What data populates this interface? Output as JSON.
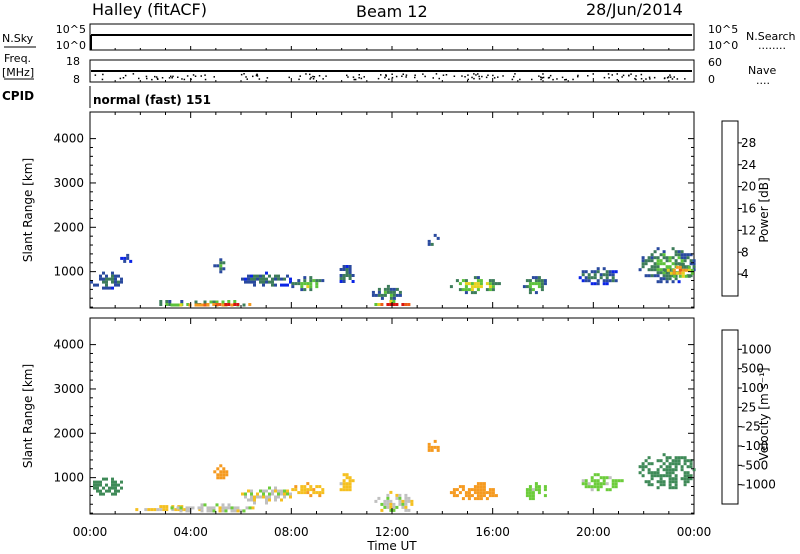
{
  "header": {
    "station": "Halley (fitACF)",
    "beam": "Beam 12",
    "date": "28/Jun/2014"
  },
  "noise_panel": {
    "left_label": "N.Sky",
    "right_label": "N.Search",
    "left_ticks": [
      "10^5",
      "10^0"
    ],
    "right_ticks": [
      "10^5",
      "10^0"
    ],
    "right_dots": "........"
  },
  "freq_panel": {
    "left_label_1": "Freq.",
    "left_label_2": "[MHz]",
    "right_label": "Nave",
    "left_ticks": [
      "18",
      "8"
    ],
    "right_ticks": [
      "60",
      "0"
    ],
    "right_dots": "...."
  },
  "cpid": {
    "label": "CPID",
    "mode": "normal (fast) 151"
  },
  "colors": {
    "power_scale": [
      "#0a24e6",
      "#2a4a9e",
      "#3d7c5a",
      "#5cc23a",
      "#e6d21e",
      "#f59a1e",
      "#ee5a18",
      "#d8140e"
    ],
    "velocity_scale": [
      "#e8140e",
      "#f0641a",
      "#f59a20",
      "#f5c020",
      "#c0c0c0",
      "#6ccc3a",
      "#3f8a58",
      "#2a5a9a",
      "#1e3cc8"
    ]
  },
  "chart_data": [
    {
      "type": "heatmap",
      "name": "power",
      "ylabel": "Slant Range [km]",
      "xlabel": "",
      "xlim": [
        0,
        24
      ],
      "ylim": [
        180,
        4600
      ],
      "x_ticks": [
        "00:00",
        "04:00",
        "08:00",
        "12:00",
        "16:00",
        "20:00",
        "00:00"
      ],
      "y_ticks": [
        1000,
        2000,
        3000,
        4000
      ],
      "colorbar": {
        "label": "Power [dB]",
        "range": [
          0,
          32
        ],
        "ticks": [
          "4",
          "8",
          "12",
          "16",
          "20",
          "24",
          "28"
        ]
      },
      "echo_regions": [
        {
          "t_start": 0.0,
          "t_end": 1.3,
          "r_min": 650,
          "r_max": 1000,
          "level": 8
        },
        {
          "t_start": 1.2,
          "t_end": 1.6,
          "r_min": 1200,
          "r_max": 1400,
          "level": 6
        },
        {
          "t_start": 1.8,
          "t_end": 4.8,
          "r_min": 280,
          "r_max": 360,
          "level": 14
        },
        {
          "t_start": 3.2,
          "t_end": 6.2,
          "r_min": 250,
          "r_max": 350,
          "level": 22
        },
        {
          "t_start": 4.5,
          "t_end": 6.5,
          "r_min": 240,
          "r_max": 360,
          "level": 27
        },
        {
          "t_start": 4.9,
          "t_end": 5.4,
          "r_min": 1000,
          "r_max": 1300,
          "level": 9
        },
        {
          "t_start": 6.0,
          "t_end": 8.0,
          "r_min": 680,
          "r_max": 1000,
          "level": 8
        },
        {
          "t_start": 8.0,
          "t_end": 9.3,
          "r_min": 600,
          "r_max": 900,
          "level": 13
        },
        {
          "t_start": 9.8,
          "t_end": 10.5,
          "r_min": 750,
          "r_max": 1150,
          "level": 8
        },
        {
          "t_start": 11.3,
          "t_end": 12.8,
          "r_min": 230,
          "r_max": 360,
          "level": 27
        },
        {
          "t_start": 11.2,
          "t_end": 12.4,
          "r_min": 400,
          "r_max": 700,
          "level": 10
        },
        {
          "t_start": 13.3,
          "t_end": 13.9,
          "r_min": 1600,
          "r_max": 1850,
          "level": 7
        },
        {
          "t_start": 14.3,
          "t_end": 16.3,
          "r_min": 550,
          "r_max": 900,
          "level": 15
        },
        {
          "t_start": 17.2,
          "t_end": 18.1,
          "r_min": 550,
          "r_max": 900,
          "level": 12
        },
        {
          "t_start": 19.3,
          "t_end": 21.1,
          "r_min": 750,
          "r_max": 1100,
          "level": 8
        },
        {
          "t_start": 21.8,
          "t_end": 24.0,
          "r_min": 800,
          "r_max": 1550,
          "level": 11
        },
        {
          "t_start": 22.8,
          "t_end": 24.0,
          "r_min": 900,
          "r_max": 1200,
          "level": 20
        }
      ]
    },
    {
      "type": "heatmap",
      "name": "velocity",
      "ylabel": "Slant Range [km]",
      "xlabel": "Time UT",
      "xlim": [
        0,
        24
      ],
      "ylim": [
        180,
        4600
      ],
      "x_ticks": [
        "00:00",
        "04:00",
        "08:00",
        "12:00",
        "16:00",
        "20:00",
        "00:00"
      ],
      "y_ticks": [
        1000,
        2000,
        3000,
        4000
      ],
      "colorbar": {
        "label": "Velocity [m s⁻¹]",
        "ticks": [
          "1000",
          "500",
          "100",
          "25",
          "-25",
          "-100",
          "-500",
          "-1000"
        ]
      },
      "echo_regions": [
        {
          "t_start": 0.0,
          "t_end": 1.3,
          "r_min": 650,
          "r_max": 1000,
          "velocity": 300
        },
        {
          "t_start": 1.8,
          "t_end": 4.8,
          "r_min": 260,
          "r_max": 380,
          "velocity": -50
        },
        {
          "t_start": 3.2,
          "t_end": 6.5,
          "r_min": 240,
          "r_max": 420,
          "velocity": 0
        },
        {
          "t_start": 4.9,
          "t_end": 5.4,
          "r_min": 1000,
          "r_max": 1300,
          "velocity": -150
        },
        {
          "t_start": 6.0,
          "t_end": 8.0,
          "r_min": 450,
          "r_max": 800,
          "velocity": 0
        },
        {
          "t_start": 8.0,
          "t_end": 9.3,
          "r_min": 600,
          "r_max": 900,
          "velocity": -80
        },
        {
          "t_start": 9.8,
          "t_end": 10.5,
          "r_min": 700,
          "r_max": 1100,
          "velocity": -60
        },
        {
          "t_start": 11.3,
          "t_end": 12.8,
          "r_min": 230,
          "r_max": 700,
          "velocity": 0
        },
        {
          "t_start": 13.3,
          "t_end": 13.9,
          "r_min": 1600,
          "r_max": 1850,
          "velocity": -200
        },
        {
          "t_start": 14.3,
          "t_end": 16.3,
          "r_min": 550,
          "r_max": 900,
          "velocity": -300
        },
        {
          "t_start": 17.2,
          "t_end": 18.1,
          "r_min": 550,
          "r_max": 900,
          "velocity": 60
        },
        {
          "t_start": 19.3,
          "t_end": 21.1,
          "r_min": 750,
          "r_max": 1100,
          "velocity": 60
        },
        {
          "t_start": 21.8,
          "t_end": 24.0,
          "r_min": 800,
          "r_max": 1550,
          "velocity": 150
        }
      ]
    }
  ]
}
